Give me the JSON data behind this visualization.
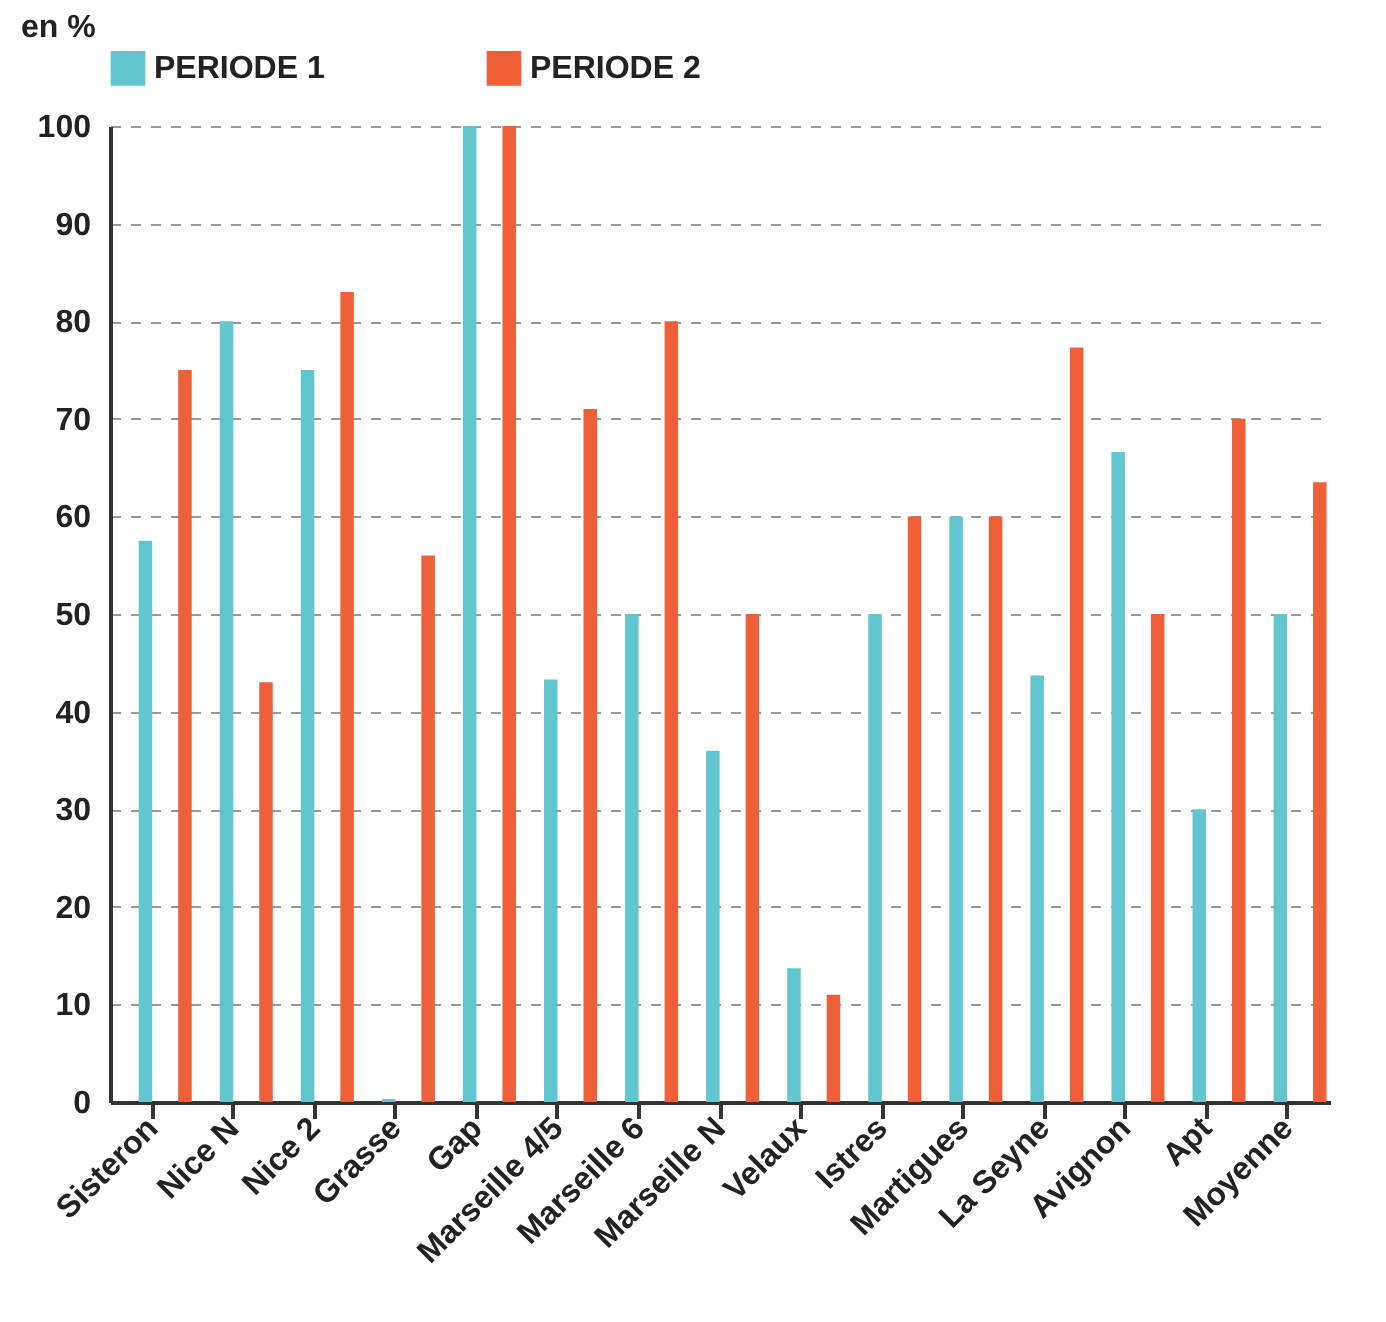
{
  "chart_data": {
    "type": "bar",
    "ylabel": "en %",
    "categories": [
      "Sisteron",
      "Nice N",
      "Nice 2",
      "Grasse",
      "Gap",
      "Marseille 4/5",
      "Marseille 6",
      "Marseille N",
      "Velaux",
      "Istres",
      "Martigues",
      "La Seyne",
      "Avignon",
      "Apt",
      "Moyenne"
    ],
    "series": [
      {
        "name": "PERIODE 1",
        "color": "#62c6d0",
        "values": [
          57.5,
          80,
          75,
          0.3,
          100,
          43.3,
          50,
          36,
          13.7,
          50,
          60,
          43.7,
          66.6,
          30,
          50
        ]
      },
      {
        "name": "PERIODE 2",
        "color": "#f06038",
        "values": [
          75,
          43,
          83,
          56,
          100,
          71,
          80,
          50,
          11,
          60,
          60,
          77.3,
          50,
          70,
          63.5
        ]
      }
    ],
    "ylim": [
      0,
      100
    ],
    "yticks": [
      0,
      10,
      20,
      30,
      40,
      50,
      60,
      70,
      80,
      90,
      100
    ],
    "grid": "y",
    "legend": "top"
  }
}
